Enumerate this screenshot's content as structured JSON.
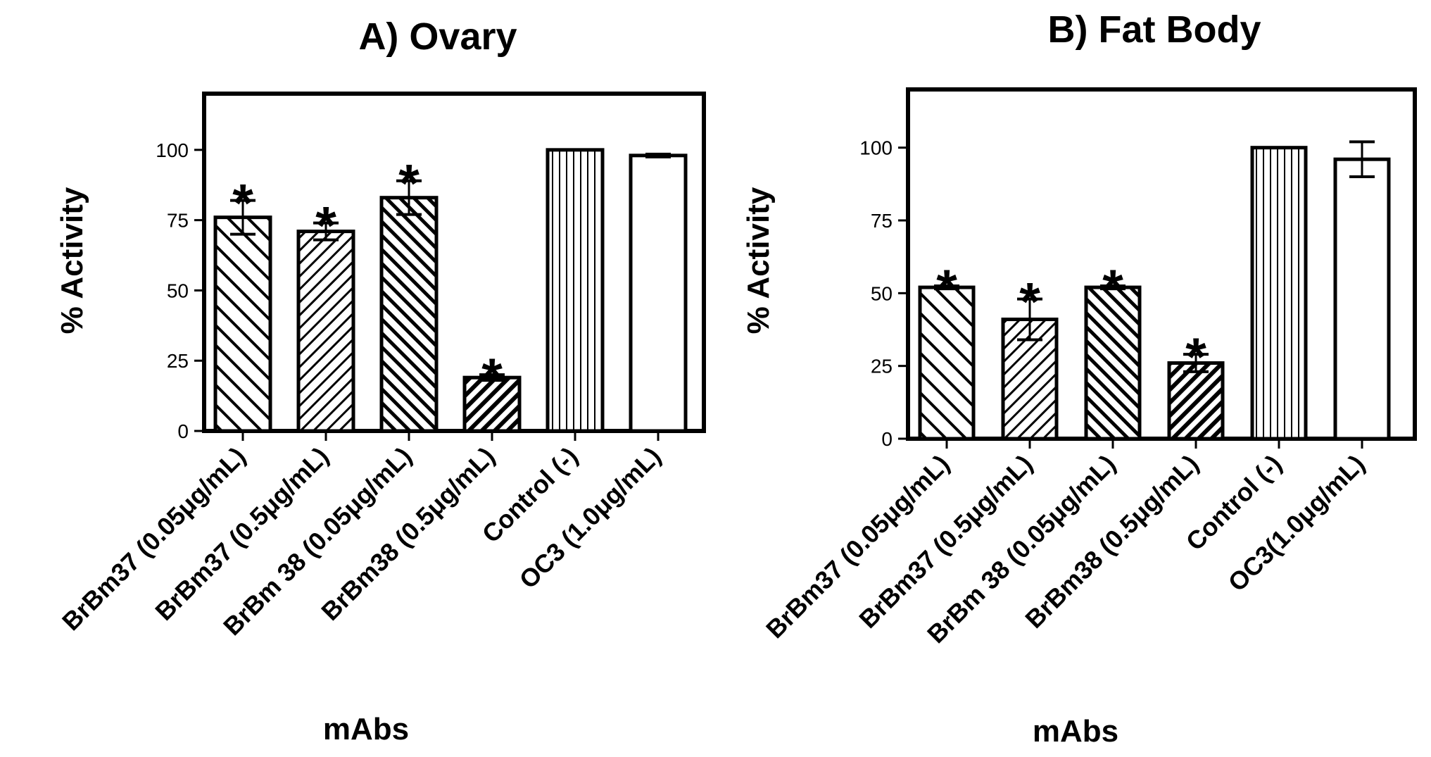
{
  "chart_data": [
    {
      "type": "bar",
      "title": "A) Ovary",
      "xlabel": "mAbs",
      "ylabel": "% Activity",
      "ylim": [
        0,
        120
      ],
      "yticks": [
        0,
        25,
        50,
        75,
        100
      ],
      "categories": [
        "BrBm37 (0.05μg/mL)",
        "BrBm37 (0.5μg/mL)",
        "BrBm 38 (0.05μg/mL)",
        "BrBm38 (0.5μg/mL)",
        "Control (-)",
        "OC3 (1.0μg/mL)"
      ],
      "values": [
        76,
        71,
        83,
        19,
        100,
        98
      ],
      "errors": [
        6,
        3,
        6,
        1,
        0,
        0.5
      ],
      "significance": [
        "*",
        "*",
        "*",
        "*",
        "",
        ""
      ],
      "patterns": [
        "diag-left-wide",
        "diag-right-fine",
        "diag-left-dense",
        "diag-right-dense",
        "vertical",
        "none"
      ]
    },
    {
      "type": "bar",
      "title": "B) Fat Body",
      "xlabel": "mAbs",
      "ylabel": "% Activity",
      "ylim": [
        0,
        120
      ],
      "yticks": [
        0,
        25,
        50,
        75,
        100
      ],
      "categories": [
        "BrBm37 (0.05μg/mL)",
        "BrBm37 (0.5μg/mL)",
        "BrBm 38 (0.05μg/mL)",
        "BrBm38 (0.5μg/mL)",
        "Control (-)",
        "OC3(1.0μg/mL)"
      ],
      "values": [
        52,
        41,
        52,
        26,
        100,
        96
      ],
      "errors": [
        0.5,
        7,
        0.5,
        3,
        0,
        6
      ],
      "significance": [
        "*",
        "*",
        "*",
        "*",
        "",
        ""
      ],
      "patterns": [
        "diag-left-wide",
        "diag-right-fine",
        "diag-left-dense",
        "diag-right-dense",
        "vertical",
        "none"
      ]
    }
  ]
}
